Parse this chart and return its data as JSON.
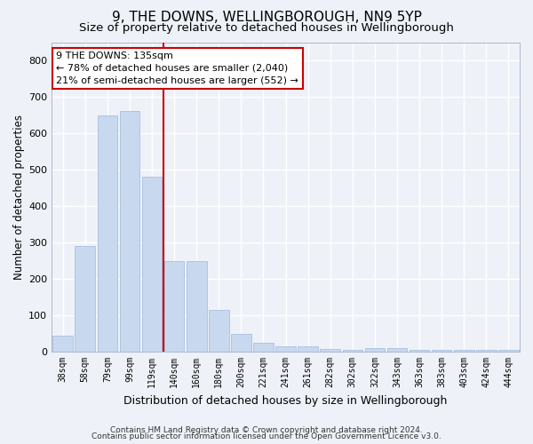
{
  "title1": "9, THE DOWNS, WELLINGBOROUGH, NN9 5YP",
  "title2": "Size of property relative to detached houses in Wellingborough",
  "xlabel": "Distribution of detached houses by size in Wellingborough",
  "ylabel": "Number of detached properties",
  "categories": [
    "38sqm",
    "58sqm",
    "79sqm",
    "99sqm",
    "119sqm",
    "140sqm",
    "160sqm",
    "180sqm",
    "200sqm",
    "221sqm",
    "241sqm",
    "261sqm",
    "282sqm",
    "302sqm",
    "322sqm",
    "343sqm",
    "363sqm",
    "383sqm",
    "403sqm",
    "424sqm",
    "444sqm"
  ],
  "values": [
    45,
    290,
    650,
    660,
    480,
    250,
    248,
    115,
    50,
    25,
    15,
    15,
    8,
    5,
    10,
    10,
    5,
    5,
    5,
    5,
    5
  ],
  "bar_color": "#c8d8ee",
  "bar_edge_color": "#a8c0e0",
  "vline_color": "#cc0000",
  "annotation_text": "9 THE DOWNS: 135sqm\n← 78% of detached houses are smaller (2,040)\n21% of semi-detached houses are larger (552) →",
  "annotation_box_color": "#ffffff",
  "annotation_box_edge_color": "#cc0000",
  "ylim": [
    0,
    850
  ],
  "yticks": [
    0,
    100,
    200,
    300,
    400,
    500,
    600,
    700,
    800
  ],
  "footer1": "Contains HM Land Registry data © Crown copyright and database right 2024.",
  "footer2": "Contains public sector information licensed under the Open Government Licence v3.0.",
  "bg_color": "#eef2f8",
  "grid_color": "#ffffff",
  "title1_fontsize": 11,
  "title2_fontsize": 9.5,
  "xlabel_fontsize": 9,
  "ylabel_fontsize": 8.5,
  "footer_fontsize": 6.5
}
